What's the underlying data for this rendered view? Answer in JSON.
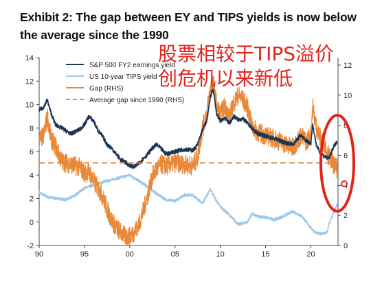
{
  "title": "Exhibit 2: The gap between EY and TIPS yields is now below the average since the 1990",
  "overlay_text": [
    "股票相较于TIPS溢价",
    "创危机以来新低"
  ],
  "colors": {
    "ey": "#1b3557",
    "tips": "#9ec8e8",
    "gap": "#e8893a",
    "avg": "#e8893a",
    "annotation": "#e2231a"
  },
  "chart_data": {
    "type": "line",
    "title": "Exhibit 2: The gap between EY and TIPS yields is now below the average since the 1990",
    "x_tick_labels": [
      "90",
      "95",
      "00",
      "05",
      "10",
      "15",
      "20"
    ],
    "x_ticks": [
      1990,
      1995,
      2000,
      2005,
      2010,
      2015,
      2020
    ],
    "xlim": [
      1990,
      2023
    ],
    "left_axis": {
      "ylim": [
        -2,
        14
      ],
      "ticks": [
        -2,
        0,
        2,
        4,
        6,
        8,
        10,
        12,
        14
      ]
    },
    "right_axis": {
      "ylim": [
        0,
        12.5
      ],
      "ticks": [
        0,
        2,
        4,
        6,
        8,
        10,
        12
      ]
    },
    "series": [
      {
        "name": "S&P 500 FY2 earnings yield",
        "axis": "left",
        "style": "solid",
        "x": [
          1990,
          1990.5,
          1990.9,
          1991.3,
          1991.8,
          1992.5,
          1993.5,
          1994.5,
          1995.0,
          1995.5,
          1996.0,
          1996.5,
          1997.0,
          1997.5,
          1998.0,
          1998.5,
          1999.0,
          1999.5,
          2000.0,
          2000.5,
          2001.0,
          2001.5,
          2002.0,
          2002.5,
          2003.0,
          2003.5,
          2004.0,
          2004.5,
          2005.0,
          2006.0,
          2007.0,
          2007.5,
          2008.0,
          2008.5,
          2008.9,
          2009.2,
          2009.6,
          2010.0,
          2010.5,
          2011.0,
          2011.5,
          2012.0,
          2012.5,
          2013.0,
          2013.5,
          2014.0,
          2015.0,
          2016.0,
          2017.0,
          2018.0,
          2018.9,
          2019.5,
          2020.0,
          2020.2,
          2020.6,
          2021.0,
          2021.5,
          2022.0,
          2022.5,
          2022.9
        ],
        "values": [
          9.5,
          9.8,
          10.4,
          9.3,
          8.3,
          8.0,
          7.5,
          7.9,
          8.3,
          9.0,
          8.6,
          7.8,
          7.3,
          6.6,
          6.3,
          5.8,
          5.3,
          5.1,
          4.8,
          4.7,
          5.0,
          5.4,
          5.8,
          6.3,
          6.6,
          6.2,
          5.8,
          5.9,
          6.0,
          6.2,
          6.1,
          6.6,
          7.8,
          8.6,
          10.6,
          11.4,
          9.2,
          8.6,
          8.9,
          8.4,
          9.0,
          8.7,
          8.8,
          8.4,
          8.0,
          7.6,
          7.3,
          7.1,
          6.8,
          6.6,
          7.4,
          6.9,
          6.7,
          8.3,
          6.6,
          5.9,
          5.6,
          5.4,
          6.4,
          6.8
        ]
      },
      {
        "name": "US 10-year TIPS yield",
        "axis": "left",
        "style": "solid",
        "x": [
          1990,
          1991,
          1992,
          1993,
          1994,
          1995,
          1996,
          1997,
          1998,
          1999,
          2000,
          2001,
          2002,
          2003,
          2004,
          2005,
          2006,
          2007,
          2008,
          2008.9,
          2009.5,
          2010,
          2011,
          2012,
          2013,
          2013.5,
          2014,
          2015,
          2016,
          2017,
          2018,
          2019,
          2020,
          2020.5,
          2021,
          2021.8,
          2022,
          2022.5,
          2022.9
        ],
        "values": [
          2.5,
          2.1,
          2.0,
          1.9,
          2.3,
          2.9,
          3.1,
          3.4,
          3.6,
          3.8,
          4.0,
          3.5,
          3.0,
          2.4,
          1.9,
          1.8,
          2.3,
          2.3,
          1.6,
          2.8,
          1.9,
          1.3,
          0.6,
          -0.2,
          0.0,
          0.7,
          0.5,
          0.4,
          0.2,
          0.5,
          0.9,
          0.5,
          -0.5,
          -0.9,
          -1.0,
          -0.9,
          -0.2,
          0.8,
          1.5
        ]
      },
      {
        "name": "Gap (RHS)",
        "axis": "right",
        "style": "solid",
        "x": [
          1990,
          1990.5,
          1990.9,
          1991.3,
          1991.8,
          1992.5,
          1993.5,
          1994.5,
          1995.0,
          1995.5,
          1996.0,
          1996.5,
          1997.0,
          1997.5,
          1998.0,
          1998.5,
          1999.0,
          1999.5,
          2000.0,
          2000.5,
          2001.0,
          2001.5,
          2002.0,
          2002.5,
          2003.0,
          2003.5,
          2004.0,
          2005.0,
          2006.0,
          2007.0,
          2007.5,
          2008.0,
          2008.5,
          2008.9,
          2009.2,
          2009.6,
          2010.0,
          2010.5,
          2011.0,
          2011.5,
          2012.0,
          2012.5,
          2013.0,
          2013.5,
          2014.0,
          2015.0,
          2016.0,
          2017.0,
          2018.0,
          2018.9,
          2019.5,
          2020.0,
          2020.2,
          2020.6,
          2021.0,
          2021.5,
          2022.0,
          2022.5,
          2022.9
        ],
        "values": [
          7.0,
          7.3,
          8.6,
          7.1,
          6.6,
          5.6,
          5.4,
          5.2,
          4.8,
          4.9,
          4.3,
          3.8,
          3.3,
          2.4,
          1.7,
          1.2,
          0.9,
          0.6,
          0.6,
          0.9,
          1.4,
          2.3,
          3.4,
          4.6,
          5.1,
          5.4,
          5.3,
          5.5,
          5.4,
          5.3,
          5.9,
          7.7,
          8.8,
          10.4,
          10.9,
          9.3,
          8.7,
          9.3,
          8.5,
          9.5,
          10.0,
          9.7,
          9.2,
          7.9,
          7.6,
          7.3,
          7.1,
          6.8,
          6.5,
          7.3,
          6.9,
          7.4,
          9.2,
          7.9,
          7.2,
          6.8,
          5.9,
          5.4,
          5.1
        ]
      },
      {
        "name": "Average gap since 1990 (RHS)",
        "axis": "right",
        "style": "dashed",
        "x": [
          1990,
          2023
        ],
        "values": [
          5.5,
          5.5
        ]
      }
    ],
    "legend_position": "top-left",
    "grid": false
  }
}
